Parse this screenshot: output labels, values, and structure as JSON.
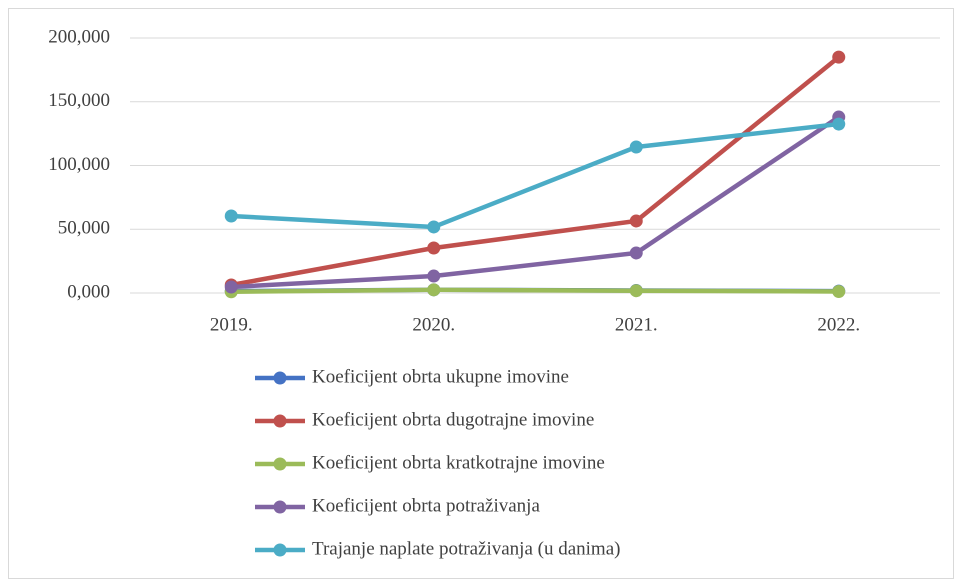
{
  "chart_data": {
    "type": "line",
    "categories": [
      "2019.",
      "2020.",
      "2021.",
      "2022."
    ],
    "series": [
      {
        "name": "Koeficijent obrta ukupne imovine",
        "color": "#4472c4",
        "values": [
          1.5,
          2.5,
          2.0,
          1.5
        ]
      },
      {
        "name": "Koeficijent obrta dugotrajne imovine",
        "color": "#c0504d",
        "values": [
          6.3,
          35.3,
          56.5,
          185.0
        ]
      },
      {
        "name": "Koeficijent obrta kratkotrajne imovine",
        "color": "#9bbb59",
        "values": [
          1.0,
          2.5,
          1.8,
          1.2
        ]
      },
      {
        "name": "Koeficijent obrta potraživanja",
        "color": "#8064a2",
        "values": [
          4.7,
          13.3,
          31.4,
          138.0
        ]
      },
      {
        "name": "Trajanje naplate potraživanja (u danima)",
        "color": "#4bacc6",
        "values": [
          60.4,
          51.8,
          114.5,
          132.5
        ]
      }
    ],
    "ylim": [
      0,
      200
    ],
    "yticks": [
      {
        "value": 0,
        "label": "0,000"
      },
      {
        "value": 50,
        "label": "50,000"
      },
      {
        "value": 100,
        "label": "100,000"
      },
      {
        "value": 150,
        "label": "150,000"
      },
      {
        "value": 200,
        "label": "200,000"
      }
    ],
    "grid": true,
    "legend": "bottom"
  }
}
